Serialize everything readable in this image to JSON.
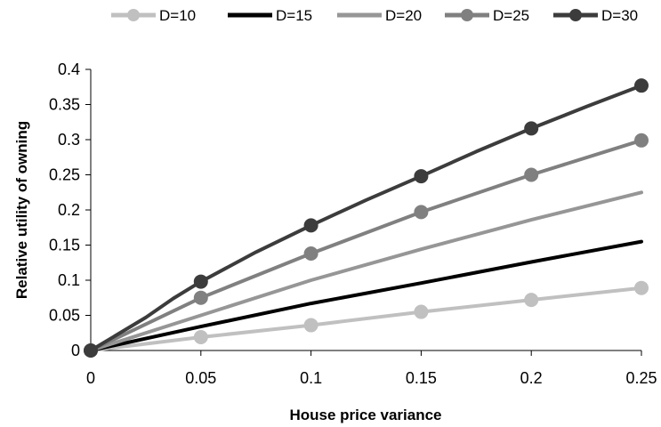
{
  "chart_data": {
    "type": "line",
    "title": "",
    "xlabel": "House price variance",
    "ylabel": "Relative utility of owning",
    "xlim": [
      0,
      0.25
    ],
    "ylim": [
      0,
      0.4
    ],
    "x_ticks": [
      "0",
      "0.05",
      "0.1",
      "0.15",
      "0.2",
      "0.25"
    ],
    "y_ticks": [
      "0",
      "0.05",
      "0.1",
      "0.15",
      "0.2",
      "0.25",
      "0.3",
      "0.35",
      "0.4"
    ],
    "grid": false,
    "legend_position": "top",
    "series": [
      {
        "name": "D=10",
        "color": "#c0c0c0",
        "markers": true,
        "x": [
          0,
          0.05,
          0.1,
          0.15,
          0.2,
          0.25
        ],
        "y": [
          0,
          0.019,
          0.036,
          0.055,
          0.072,
          0.089
        ]
      },
      {
        "name": "D=15",
        "color": "#000000",
        "markers": false,
        "x": [
          0,
          0.05,
          0.1,
          0.15,
          0.2,
          0.25
        ],
        "y": [
          0,
          0.034,
          0.067,
          0.096,
          0.126,
          0.155
        ]
      },
      {
        "name": "D=20",
        "color": "#969696",
        "markers": false,
        "x": [
          0,
          0.05,
          0.1,
          0.15,
          0.2,
          0.25
        ],
        "y": [
          0,
          0.05,
          0.1,
          0.144,
          0.186,
          0.225
        ]
      },
      {
        "name": "D=25",
        "color": "#808080",
        "markers": true,
        "x": [
          0,
          0.05,
          0.1,
          0.15,
          0.2,
          0.25
        ],
        "y": [
          0,
          0.075,
          0.138,
          0.197,
          0.25,
          0.299
        ]
      },
      {
        "name": "D=30",
        "color": "#3c3c3c",
        "markers": true,
        "x": [
          0,
          0.025,
          0.0375,
          0.05,
          0.075,
          0.1,
          0.125,
          0.15,
          0.175,
          0.2,
          0.225,
          0.25
        ],
        "y": [
          0,
          0.047,
          0.074,
          0.098,
          0.14,
          0.178,
          0.214,
          0.248,
          0.283,
          0.316,
          0.347,
          0.377
        ],
        "marker_x": [
          0,
          0.05,
          0.1,
          0.15,
          0.2,
          0.25
        ]
      }
    ]
  }
}
